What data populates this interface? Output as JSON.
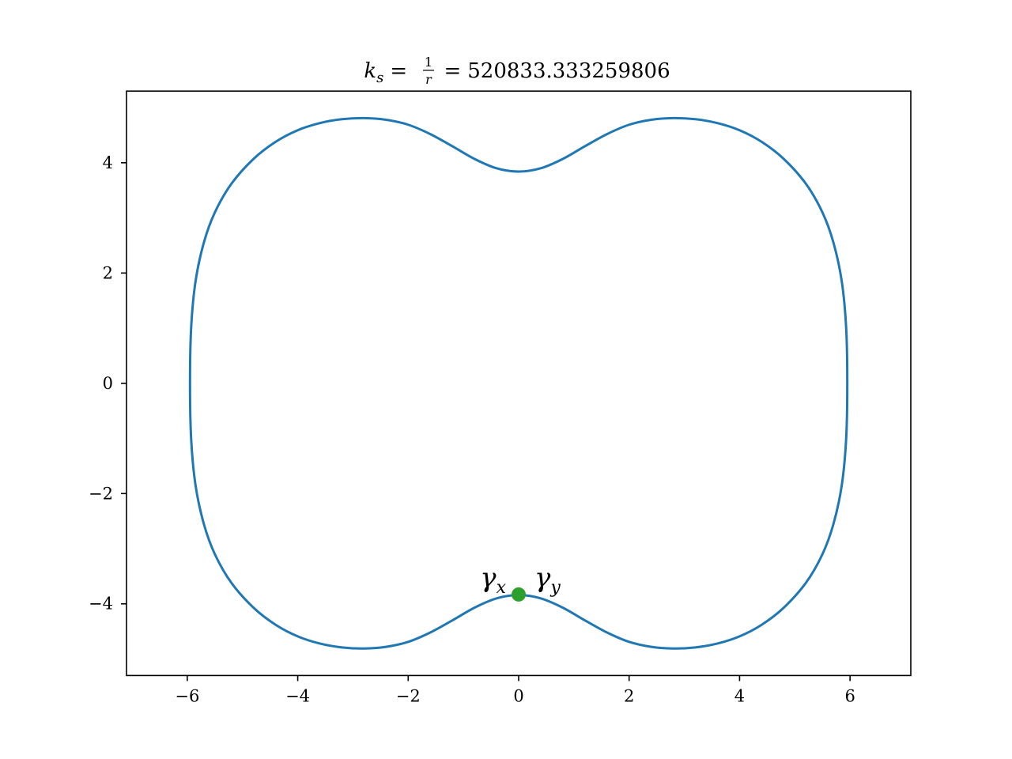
{
  "chart_data": {
    "type": "line",
    "title": {
      "k": "k",
      "k_sub": "s",
      "eq1": "=",
      "frac_num": "1",
      "frac_den": "r",
      "eq2": "=",
      "value": "520833.333259806"
    },
    "xlabel": "",
    "ylabel": "",
    "xlim": [
      -7.1,
      7.1
    ],
    "ylim": [
      -5.3,
      5.3
    ],
    "x_ticks": [
      -6,
      -4,
      -2,
      0,
      2,
      4,
      6
    ],
    "x_tick_labels": [
      "−6",
      "−4",
      "−2",
      "0",
      "2",
      "4",
      "6"
    ],
    "y_ticks": [
      -4,
      -2,
      0,
      2,
      4
    ],
    "y_tick_labels": [
      "−4",
      "−2",
      "0",
      "2",
      "4"
    ],
    "grid": false,
    "series": [
      {
        "color": "#1f77b4",
        "points": [
          [
            0,
            3.84
          ],
          [
            0.4,
            3.9
          ],
          [
            0.8,
            4.07
          ],
          [
            1.2,
            4.3
          ],
          [
            1.6,
            4.52
          ],
          [
            2.0,
            4.69
          ],
          [
            2.4,
            4.78
          ],
          [
            2.8,
            4.81
          ],
          [
            3.2,
            4.79
          ],
          [
            3.6,
            4.72
          ],
          [
            4.0,
            4.59
          ],
          [
            4.4,
            4.38
          ],
          [
            4.8,
            4.07
          ],
          [
            5.2,
            3.62
          ],
          [
            5.5,
            3.1
          ],
          [
            5.7,
            2.55
          ],
          [
            5.85,
            1.85
          ],
          [
            5.93,
            1.0
          ],
          [
            5.95,
            0.0
          ],
          [
            5.93,
            -1.0
          ],
          [
            5.85,
            -1.85
          ],
          [
            5.7,
            -2.55
          ],
          [
            5.5,
            -3.1
          ],
          [
            5.2,
            -3.62
          ],
          [
            4.8,
            -4.07
          ],
          [
            4.4,
            -4.38
          ],
          [
            4.0,
            -4.59
          ],
          [
            3.6,
            -4.72
          ],
          [
            3.2,
            -4.79
          ],
          [
            2.8,
            -4.81
          ],
          [
            2.4,
            -4.78
          ],
          [
            2.0,
            -4.69
          ],
          [
            1.6,
            -4.52
          ],
          [
            1.2,
            -4.3
          ],
          [
            0.8,
            -4.07
          ],
          [
            0.4,
            -3.9
          ],
          [
            0,
            -3.84
          ],
          [
            -0.4,
            -3.9
          ],
          [
            -0.8,
            -4.07
          ],
          [
            -1.2,
            -4.3
          ],
          [
            -1.6,
            -4.52
          ],
          [
            -2.0,
            -4.69
          ],
          [
            -2.4,
            -4.78
          ],
          [
            -2.8,
            -4.81
          ],
          [
            -3.2,
            -4.79
          ],
          [
            -3.6,
            -4.72
          ],
          [
            -4.0,
            -4.59
          ],
          [
            -4.4,
            -4.38
          ],
          [
            -4.8,
            -4.07
          ],
          [
            -5.2,
            -3.62
          ],
          [
            -5.5,
            -3.1
          ],
          [
            -5.7,
            -2.55
          ],
          [
            -5.85,
            -1.85
          ],
          [
            -5.93,
            -1.0
          ],
          [
            -5.95,
            0.0
          ],
          [
            -5.93,
            1.0
          ],
          [
            -5.85,
            1.85
          ],
          [
            -5.7,
            2.55
          ],
          [
            -5.5,
            3.1
          ],
          [
            -5.2,
            3.62
          ],
          [
            -4.8,
            4.07
          ],
          [
            -4.4,
            4.38
          ],
          [
            -4.0,
            4.59
          ],
          [
            -3.6,
            4.72
          ],
          [
            -3.2,
            4.79
          ],
          [
            -2.8,
            4.81
          ],
          [
            -2.4,
            4.78
          ],
          [
            -2.0,
            4.69
          ],
          [
            -1.6,
            4.52
          ],
          [
            -1.2,
            4.3
          ],
          [
            -0.8,
            4.07
          ],
          [
            -0.4,
            3.9
          ],
          [
            0,
            3.84
          ]
        ]
      }
    ],
    "marker": {
      "x": 0,
      "y": -3.83,
      "color": "#2ca02c"
    },
    "annotations": [
      {
        "symbol": "γ",
        "sub": "x",
        "side": "left"
      },
      {
        "symbol": "γ",
        "sub": "y",
        "side": "right"
      }
    ]
  }
}
